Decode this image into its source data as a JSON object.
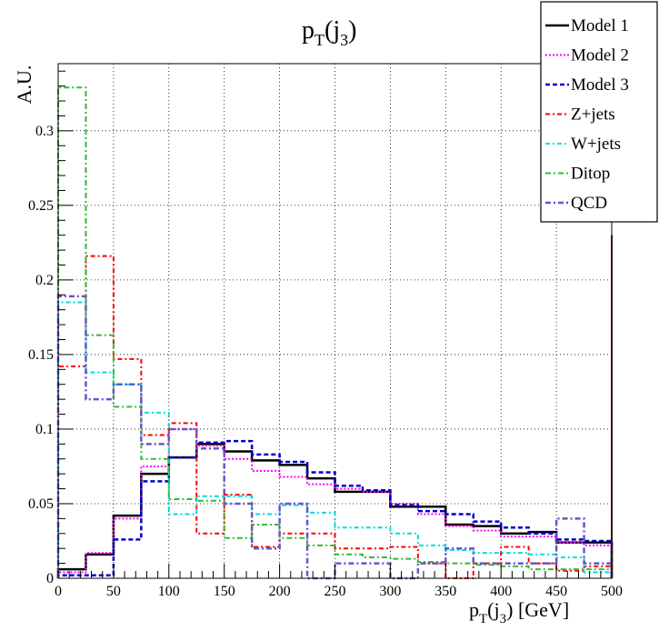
{
  "chart_data": {
    "type": "line",
    "title_main": "p",
    "title_sub": "T",
    "title_rest": "(j",
    "title_sub2": "3",
    "title_end": ")",
    "xlabel_main": "p",
    "xlabel_sub": "T",
    "xlabel_mid": "(j",
    "xlabel_sub2": "3",
    "xlabel_end": ") [GeV]",
    "ylabel": "A.U.",
    "xlim": [
      0,
      500
    ],
    "ylim": [
      0,
      0.345
    ],
    "grid": true,
    "legend_position": "top-right",
    "x_ticks": [
      0,
      50,
      100,
      150,
      200,
      250,
      300,
      350,
      400,
      450,
      500
    ],
    "y_ticks": [
      0,
      0.05,
      0.1,
      0.15,
      0.2,
      0.25,
      0.3
    ],
    "y_tick_labels": [
      "0",
      "0.05",
      "0.1",
      "0.15",
      "0.2",
      "0.25",
      "0.3"
    ],
    "bin_edges": [
      0,
      25,
      50,
      75,
      100,
      125,
      150,
      175,
      200,
      225,
      250,
      275,
      300,
      325,
      350,
      375,
      400,
      425,
      450,
      475,
      500
    ],
    "series": [
      {
        "name": "Model 1",
        "color": "#000000",
        "dash": "",
        "width": 2.5,
        "values": [
          0.006,
          0.016,
          0.042,
          0.07,
          0.081,
          0.09,
          0.085,
          0.079,
          0.076,
          0.067,
          0.058,
          0.058,
          0.048,
          0.048,
          0.036,
          0.035,
          0.03,
          0.031,
          0.024,
          0.024
        ]
      },
      {
        "name": "Model 2",
        "color": "#ff00ff",
        "dash": "2,2",
        "width": 2,
        "values": [
          0.004,
          0.017,
          0.04,
          0.075,
          0.1,
          0.089,
          0.08,
          0.072,
          0.068,
          0.063,
          0.06,
          0.058,
          0.05,
          0.043,
          0.035,
          0.032,
          0.028,
          0.028,
          0.024,
          0.022
        ]
      },
      {
        "name": "Model 3",
        "color": "#0000cc",
        "dash": "5,3",
        "width": 2.5,
        "values": [
          0.002,
          0.002,
          0.026,
          0.065,
          0.081,
          0.091,
          0.092,
          0.083,
          0.078,
          0.071,
          0.062,
          0.059,
          0.049,
          0.045,
          0.043,
          0.038,
          0.034,
          0.03,
          0.026,
          0.025
        ]
      },
      {
        "name": "Z+jets",
        "color": "#ff0000",
        "dash": "5,3,2,3",
        "width": 2,
        "values": [
          0.142,
          0.216,
          0.147,
          0.096,
          0.104,
          0.03,
          0.056,
          0.021,
          0.03,
          0.03,
          0.02,
          0.02,
          0.021,
          0.01,
          0.0,
          0.01,
          0.021,
          0.01,
          0.005,
          0.008
        ]
      },
      {
        "name": "W+jets",
        "color": "#00dddd",
        "dash": "5,3,2,3",
        "width": 2,
        "values": [
          0.185,
          0.138,
          0.13,
          0.111,
          0.043,
          0.055,
          0.055,
          0.043,
          0.049,
          0.044,
          0.034,
          0.034,
          0.03,
          0.022,
          0.019,
          0.017,
          0.017,
          0.016,
          0.014,
          0.004
        ]
      },
      {
        "name": "Ditop",
        "color": "#33bb33",
        "dash": "6,3,2,3",
        "width": 2,
        "values": [
          0.329,
          0.163,
          0.115,
          0.08,
          0.053,
          0.052,
          0.027,
          0.036,
          0.027,
          0.022,
          0.016,
          0.014,
          0.013,
          0.011,
          0.01,
          0.009,
          0.008,
          0.006,
          0.006,
          0.006
        ]
      },
      {
        "name": "QCD",
        "color": "#6655cc",
        "dash": "6,3,2,3",
        "width": 2.5,
        "values": [
          0.189,
          0.12,
          0.13,
          0.09,
          0.1,
          0.087,
          0.05,
          0.02,
          0.05,
          0.0,
          0.01,
          0.01,
          0.0,
          0.01,
          0.02,
          0.01,
          0.01,
          0.01,
          0.04,
          0.01
        ]
      }
    ]
  }
}
